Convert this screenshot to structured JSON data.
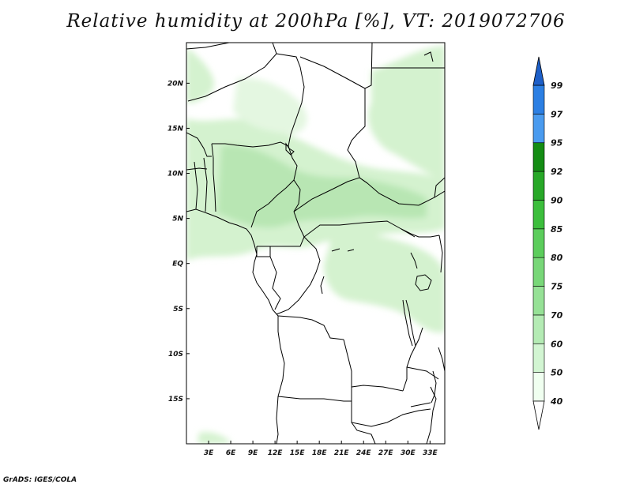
{
  "title": "Relative humidity at 200hPa [%], VT: 2019072706",
  "credit": "GrADS: IGES/COLA",
  "map": {
    "lon_range": [
      0,
      35
    ],
    "lat_range": [
      -20,
      24.5
    ],
    "lat_ticks": [
      {
        "value": 20,
        "label": "20N"
      },
      {
        "value": 15,
        "label": "15N"
      },
      {
        "value": 10,
        "label": "10N"
      },
      {
        "value": 5,
        "label": "5N"
      },
      {
        "value": 0,
        "label": "EQ"
      },
      {
        "value": -5,
        "label": "5S"
      },
      {
        "value": -10,
        "label": "10S"
      },
      {
        "value": -15,
        "label": "15S"
      }
    ],
    "lon_ticks": [
      {
        "value": 3,
        "label": "3E"
      },
      {
        "value": 6,
        "label": "6E"
      },
      {
        "value": 9,
        "label": "9E"
      },
      {
        "value": 12,
        "label": "12E"
      },
      {
        "value": 15,
        "label": "15E"
      },
      {
        "value": 18,
        "label": "18E"
      },
      {
        "value": 21,
        "label": "21E"
      },
      {
        "value": 24,
        "label": "24E"
      },
      {
        "value": 27,
        "label": "27E"
      },
      {
        "value": 30,
        "label": "30E"
      },
      {
        "value": 33,
        "label": "33E"
      }
    ]
  },
  "colorbar": {
    "levels": [
      "40",
      "50",
      "60",
      "70",
      "75",
      "80",
      "85",
      "90",
      "92",
      "95",
      "97",
      "99"
    ],
    "colors": [
      "#f0fff0",
      "#d2f5d2",
      "#b4ebb4",
      "#96e196",
      "#78d778",
      "#5ccd5c",
      "#3cbe3c",
      "#28a828",
      "#148c14",
      "#4a9bef",
      "#2c7fe3",
      "#1d5fc8"
    ]
  },
  "colors": {
    "boundary": "#000000",
    "humidity_light": "#d4f2cf",
    "humidity_mid": "#b8e6b3"
  }
}
